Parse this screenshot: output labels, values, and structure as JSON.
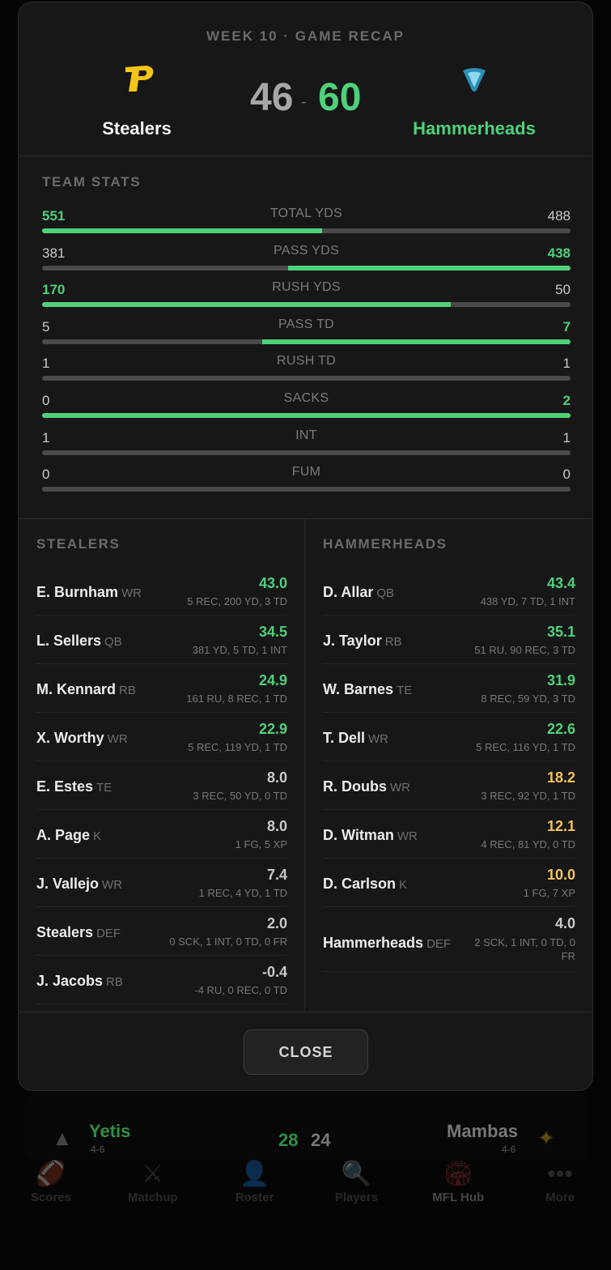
{
  "header": {
    "week_label": "WEEK 10 · GAME RECAP",
    "away": {
      "name": "Stealers",
      "score": "46",
      "logo_icon": "stealers-p-logo",
      "color": "#f5c518"
    },
    "home": {
      "name": "Hammerheads",
      "score": "60",
      "logo_icon": "hammerhead-shark-logo",
      "color": "#4fd17a"
    },
    "score_separator": "-"
  },
  "team_stats": {
    "title": "TEAM STATS",
    "rows": [
      {
        "label": "TOTAL YDS",
        "away": "551",
        "home": "488",
        "winner": "away",
        "away_share": 0.53
      },
      {
        "label": "PASS YDS",
        "away": "381",
        "home": "438",
        "winner": "home",
        "away_share": 0.465
      },
      {
        "label": "RUSH YDS",
        "away": "170",
        "home": "50",
        "winner": "away",
        "away_share": 0.773
      },
      {
        "label": "PASS TD",
        "away": "5",
        "home": "7",
        "winner": "home",
        "away_share": 0.417
      },
      {
        "label": "RUSH TD",
        "away": "1",
        "home": "1",
        "winner": "none",
        "away_share": 0.5
      },
      {
        "label": "SACKS",
        "away": "0",
        "home": "2",
        "winner": "home",
        "away_share": 0.0
      },
      {
        "label": "INT",
        "away": "1",
        "home": "1",
        "winner": "none",
        "away_share": 0.5
      },
      {
        "label": "FUM",
        "away": "0",
        "home": "0",
        "winner": "none",
        "away_share": 0.5
      }
    ]
  },
  "rosters": {
    "away": {
      "title": "STEALERS",
      "players": [
        {
          "name": "E. Burnham",
          "pos": "WR",
          "pts": "43.0",
          "tier": "high",
          "line": "5 REC, 200 YD, 3 TD"
        },
        {
          "name": "L. Sellers",
          "pos": "QB",
          "pts": "34.5",
          "tier": "high",
          "line": "381 YD, 5 TD, 1 INT"
        },
        {
          "name": "M. Kennard",
          "pos": "RB",
          "pts": "24.9",
          "tier": "high",
          "line": "161 RU, 8 REC, 1 TD"
        },
        {
          "name": "X. Worthy",
          "pos": "WR",
          "pts": "22.9",
          "tier": "high",
          "line": "5 REC, 119 YD, 1 TD"
        },
        {
          "name": "E. Estes",
          "pos": "TE",
          "pts": "8.0",
          "tier": "low",
          "line": "3 REC, 50 YD, 0 TD"
        },
        {
          "name": "A. Page",
          "pos": "K",
          "pts": "8.0",
          "tier": "low",
          "line": "1 FG, 5 XP"
        },
        {
          "name": "J. Vallejo",
          "pos": "WR",
          "pts": "7.4",
          "tier": "low",
          "line": "1 REC, 4 YD, 1 TD"
        },
        {
          "name": "Stealers",
          "pos": "DEF",
          "pts": "2.0",
          "tier": "low",
          "line": "0 SCK, 1 INT, 0 TD, 0 FR"
        },
        {
          "name": "J. Jacobs",
          "pos": "RB",
          "pts": "-0.4",
          "tier": "low",
          "line": "-4 RU, 0 REC, 0 TD"
        }
      ]
    },
    "home": {
      "title": "HAMMERHEADS",
      "players": [
        {
          "name": "D. Allar",
          "pos": "QB",
          "pts": "43.4",
          "tier": "high",
          "line": "438 YD, 7 TD, 1 INT"
        },
        {
          "name": "J. Taylor",
          "pos": "RB",
          "pts": "35.1",
          "tier": "high",
          "line": "51 RU, 90 REC, 3 TD"
        },
        {
          "name": "W. Barnes",
          "pos": "TE",
          "pts": "31.9",
          "tier": "high",
          "line": "8 REC, 59 YD, 3 TD"
        },
        {
          "name": "T. Dell",
          "pos": "WR",
          "pts": "22.6",
          "tier": "high",
          "line": "5 REC, 116 YD, 1 TD"
        },
        {
          "name": "R. Doubs",
          "pos": "WR",
          "pts": "18.2",
          "tier": "mid",
          "line": "3 REC, 92 YD, 1 TD"
        },
        {
          "name": "D. Witman",
          "pos": "WR",
          "pts": "12.1",
          "tier": "mid",
          "line": "4 REC, 81 YD, 0 TD"
        },
        {
          "name": "D. Carlson",
          "pos": "K",
          "pts": "10.0",
          "tier": "mid",
          "line": "1 FG, 7 XP"
        },
        {
          "name": "Hammerheads",
          "pos": "DEF",
          "pts": "4.0",
          "tier": "low",
          "line": "2 SCK, 1 INT, 0 TD, 0 FR",
          "tall": true
        }
      ]
    }
  },
  "footer": {
    "close_label": "CLOSE"
  },
  "background": {
    "match": {
      "away_name": "Yetis",
      "away_record": "4-6",
      "away_score": "28",
      "home_score": "24",
      "home_name": "Mambas",
      "home_record": "4-6"
    },
    "tabs": [
      {
        "label": "Scores",
        "icon": "football-icon",
        "glyph": "🏈"
      },
      {
        "label": "Matchup",
        "icon": "crossed-swords-icon",
        "glyph": "⚔"
      },
      {
        "label": "Roster",
        "icon": "person-icon",
        "glyph": "👤"
      },
      {
        "label": "Players",
        "icon": "magnifier-icon",
        "glyph": "🔍"
      },
      {
        "label": "MFL Hub",
        "icon": "stadium-icon",
        "glyph": "🏟",
        "active": true
      },
      {
        "label": "More",
        "icon": "ellipsis-icon",
        "glyph": "•••"
      }
    ]
  }
}
